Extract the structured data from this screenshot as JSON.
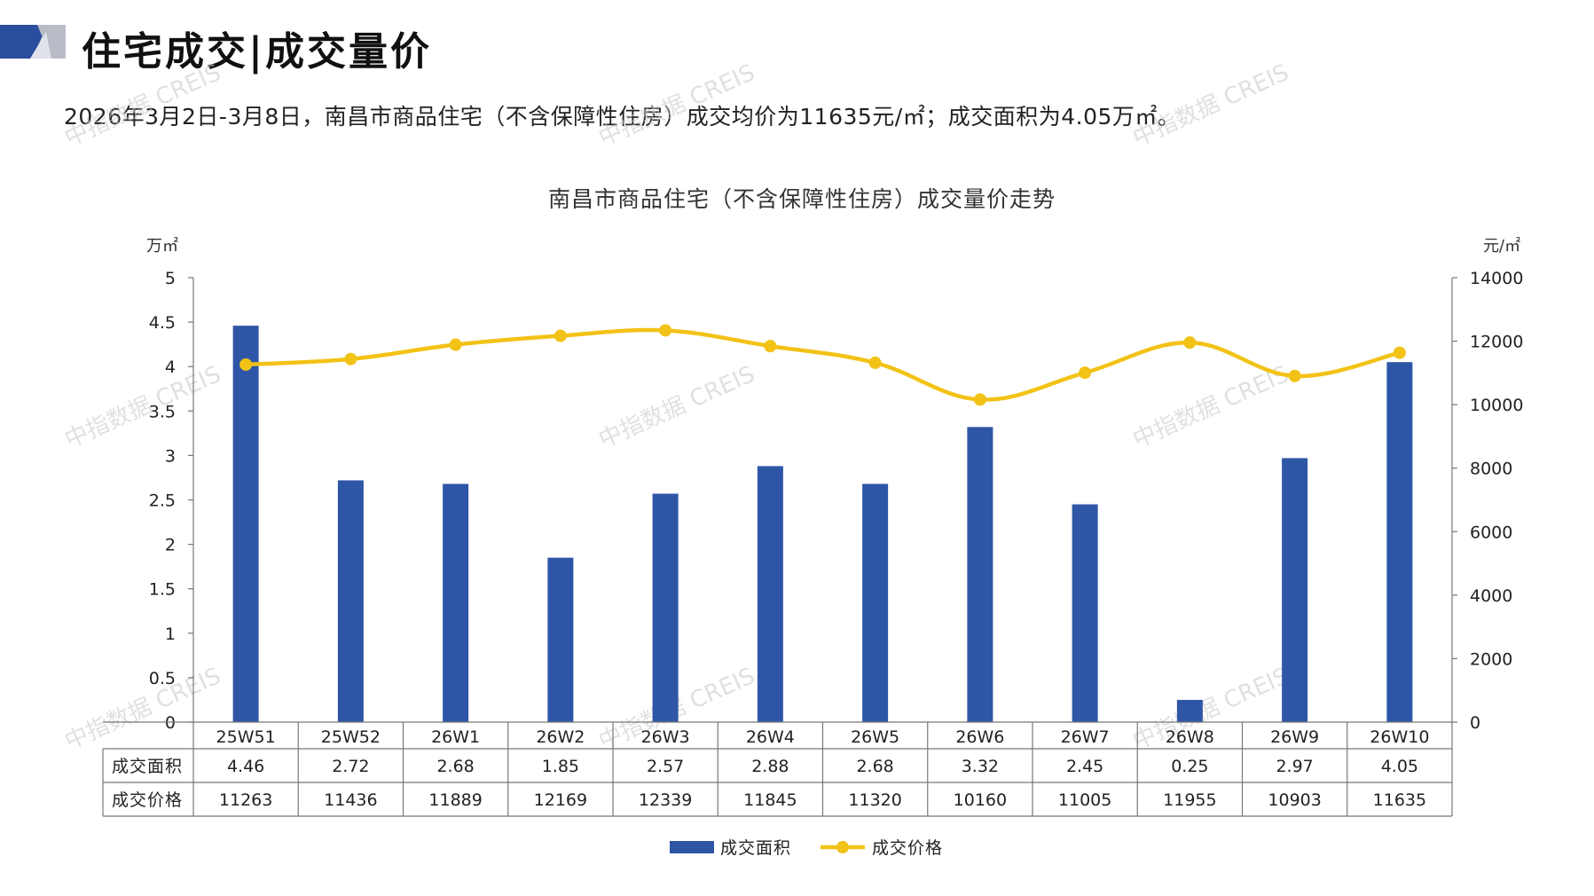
{
  "header": {
    "title": "住宅成交|成交量价",
    "summary": "2026年3月2日-3月8日，南昌市商品住宅（不含保障性住房）成交均价为11635元/㎡；成交面积为4.05万㎡。"
  },
  "watermark": "中指数据 CREIS",
  "colors": {
    "bar": "#2f56a6",
    "line": "#f2c216",
    "brand_dark": "#2b4d9e",
    "brand_gray": "#b8bcc6"
  },
  "chart_data": {
    "type": "bar+line",
    "title": "南昌市商品住宅（不含保障性住房）成交量价走势",
    "categories": [
      "25W51",
      "25W52",
      "26W1",
      "26W2",
      "26W3",
      "26W4",
      "26W5",
      "26W6",
      "26W7",
      "26W8",
      "26W9",
      "26W10"
    ],
    "series": [
      {
        "name": "成交面积",
        "type": "bar",
        "axis": "left",
        "unit": "万㎡",
        "values": [
          4.46,
          2.72,
          2.68,
          1.85,
          2.57,
          2.88,
          2.68,
          3.32,
          2.45,
          0.25,
          2.97,
          4.05
        ],
        "labels": [
          "4.46",
          "2.72",
          "2.68",
          "1.85",
          "2.57",
          "2.88",
          "2.68",
          "3.32",
          "2.45",
          "0.25",
          "2.97",
          "4.05"
        ]
      },
      {
        "name": "成交价格",
        "type": "line",
        "axis": "right",
        "unit": "元/㎡",
        "values": [
          11263,
          11436,
          11889,
          12169,
          12339,
          11845,
          11320,
          10160,
          11005,
          11955,
          10903,
          11635
        ],
        "labels": [
          "11263",
          "11436",
          "11889",
          "12169",
          "12339",
          "11845",
          "11320",
          "10160",
          "11005",
          "11955",
          "10903",
          "11635"
        ]
      }
    ],
    "y_left": {
      "label": "万㎡",
      "range": [
        0,
        5
      ],
      "ticks": [
        0,
        0.5,
        1,
        1.5,
        2,
        2.5,
        3,
        3.5,
        4,
        4.5,
        5
      ],
      "tick_labels": [
        "0",
        "0.5",
        "1",
        "1.5",
        "2",
        "2.5",
        "3",
        "3.5",
        "4",
        "4.5",
        "5"
      ]
    },
    "y_right": {
      "label": "元/㎡",
      "range": [
        0,
        14000
      ],
      "ticks": [
        0,
        2000,
        4000,
        6000,
        8000,
        10000,
        12000,
        14000
      ],
      "tick_labels": [
        "0",
        "2000",
        "4000",
        "6000",
        "8000",
        "10000",
        "12000",
        "14000"
      ]
    },
    "legend": {
      "position": "bottom"
    },
    "data_table": true,
    "grid": false
  }
}
